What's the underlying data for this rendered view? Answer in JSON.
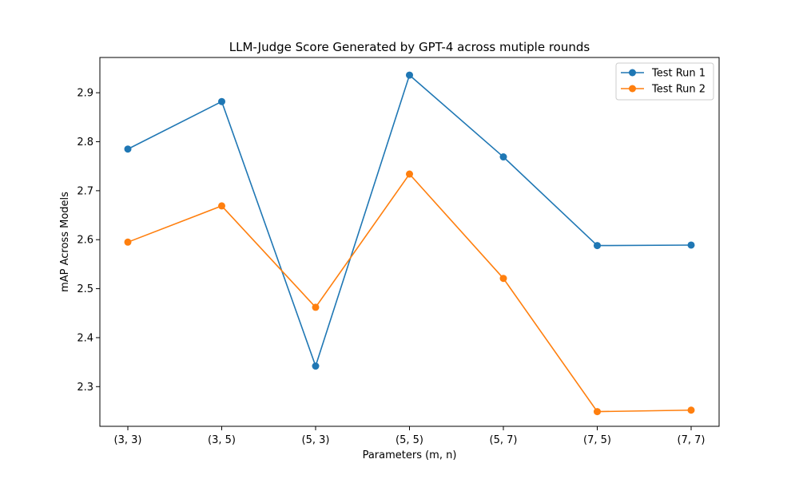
{
  "chart_data": {
    "type": "line",
    "title": "LLM-Judge Score Generated by GPT-4 across mutiple rounds",
    "xlabel": "Parameters (m, n)",
    "ylabel": "mAP Across Models",
    "categories": [
      "(3, 3)",
      "(3, 5)",
      "(5, 3)",
      "(5, 5)",
      "(5, 7)",
      "(7, 5)",
      "(7, 7)"
    ],
    "ylim": [
      2.219,
      2.972
    ],
    "yticks": [
      2.3,
      2.4,
      2.5,
      2.6,
      2.7,
      2.8,
      2.9
    ],
    "ytick_labels": [
      "2.3",
      "2.4",
      "2.5",
      "2.6",
      "2.7",
      "2.8",
      "2.9"
    ],
    "grid": false,
    "legend_position": "top-right",
    "series": [
      {
        "name": "Test Run 1",
        "color": "#1f77b4",
        "values": [
          2.785,
          2.882,
          2.342,
          2.936,
          2.769,
          2.588,
          2.589
        ]
      },
      {
        "name": "Test Run 2",
        "color": "#ff7f0e",
        "values": [
          2.595,
          2.669,
          2.462,
          2.734,
          2.521,
          2.249,
          2.252
        ]
      }
    ]
  }
}
